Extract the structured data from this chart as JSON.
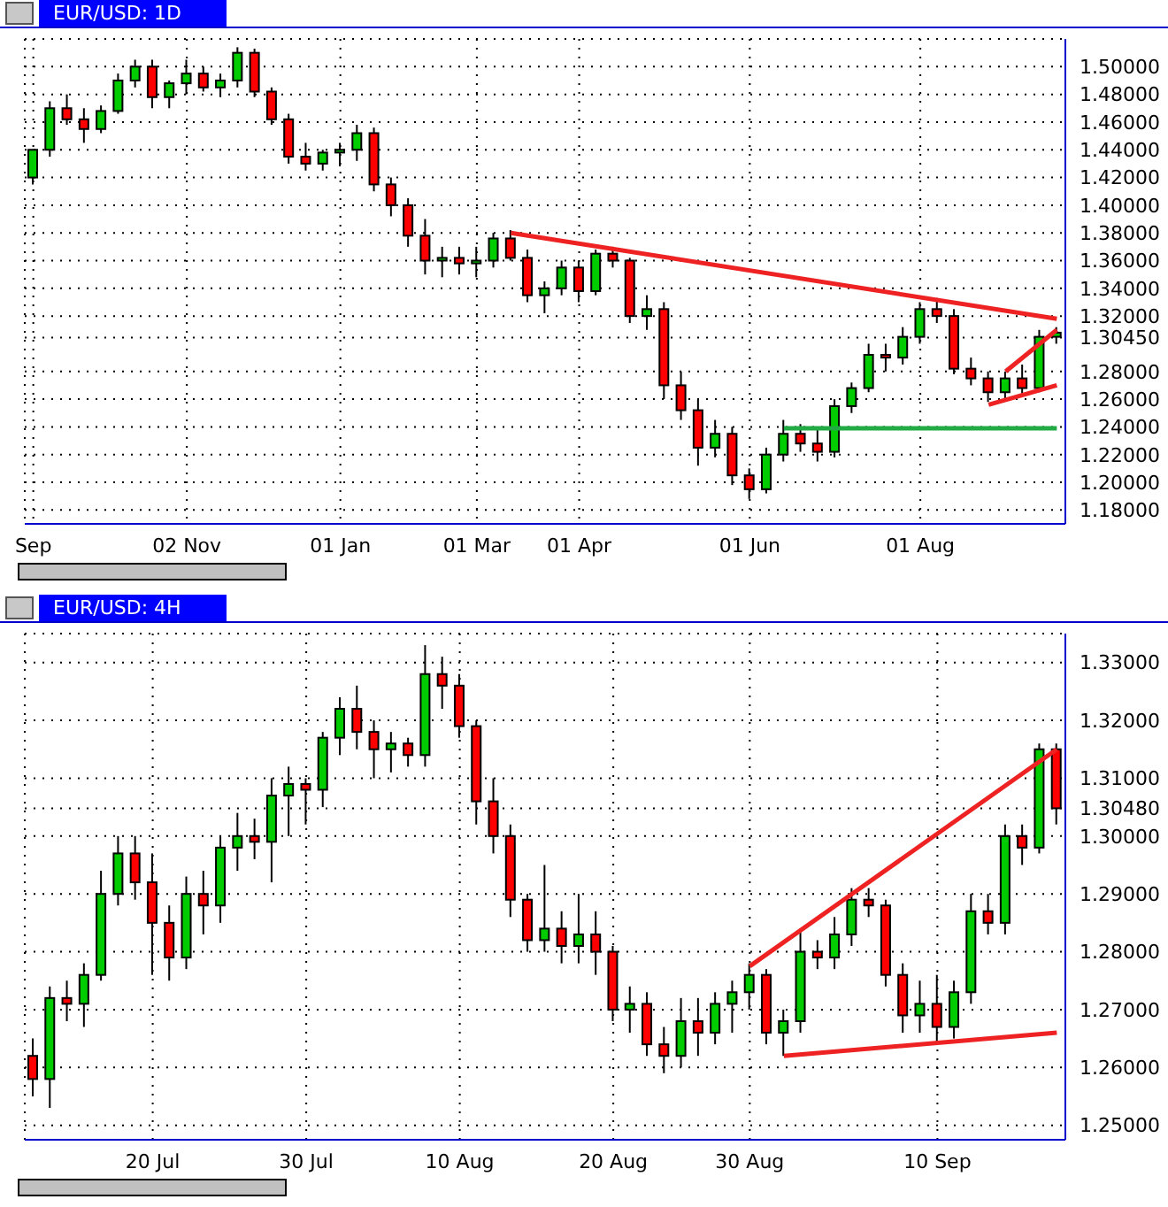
{
  "chart_data": [
    {
      "type": "candlestick",
      "title": "EUR/USD: 1D",
      "categories": [
        "Sep",
        null,
        null,
        null,
        null,
        null,
        null,
        null,
        null,
        "02 Nov",
        null,
        null,
        null,
        null,
        null,
        null,
        null,
        null,
        "01 Jan",
        null,
        null,
        null,
        null,
        null,
        null,
        null,
        "01 Mar",
        null,
        null,
        null,
        null,
        null,
        "01 Apr",
        null,
        null,
        null,
        null,
        null,
        null,
        null,
        null,
        null,
        "01 Jun",
        null,
        null,
        null,
        null,
        null,
        null,
        null,
        null,
        null,
        "01 Aug",
        null,
        null,
        null,
        null,
        null,
        null,
        null,
        null
      ],
      "ohlc": [
        [
          1.42,
          1.44,
          1.415,
          1.44
        ],
        [
          1.44,
          1.475,
          1.435,
          1.47
        ],
        [
          1.47,
          1.48,
          1.458,
          1.462
        ],
        [
          1.462,
          1.47,
          1.445,
          1.455
        ],
        [
          1.455,
          1.472,
          1.452,
          1.468
        ],
        [
          1.468,
          1.495,
          1.466,
          1.49
        ],
        [
          1.49,
          1.505,
          1.485,
          1.5
        ],
        [
          1.5,
          1.505,
          1.47,
          1.478
        ],
        [
          1.478,
          1.49,
          1.47,
          1.488
        ],
        [
          1.488,
          1.505,
          1.48,
          1.495
        ],
        [
          1.495,
          1.5,
          1.482,
          1.485
        ],
        [
          1.485,
          1.495,
          1.478,
          1.49
        ],
        [
          1.49,
          1.514,
          1.485,
          1.51
        ],
        [
          1.51,
          1.513,
          1.478,
          1.482
        ],
        [
          1.482,
          1.485,
          1.458,
          1.462
        ],
        [
          1.462,
          1.466,
          1.43,
          1.435
        ],
        [
          1.435,
          1.445,
          1.425,
          1.43
        ],
        [
          1.43,
          1.44,
          1.425,
          1.438
        ],
        [
          1.438,
          1.445,
          1.428,
          1.44
        ],
        [
          1.44,
          1.458,
          1.432,
          1.452
        ],
        [
          1.452,
          1.456,
          1.41,
          1.415
        ],
        [
          1.415,
          1.42,
          1.392,
          1.4
        ],
        [
          1.4,
          1.405,
          1.37,
          1.378
        ],
        [
          1.378,
          1.39,
          1.35,
          1.36
        ],
        [
          1.36,
          1.37,
          1.348,
          1.362
        ],
        [
          1.362,
          1.37,
          1.35,
          1.358
        ],
        [
          1.358,
          1.37,
          1.348,
          1.36
        ],
        [
          1.36,
          1.38,
          1.355,
          1.376
        ],
        [
          1.376,
          1.382,
          1.36,
          1.362
        ],
        [
          1.362,
          1.368,
          1.33,
          1.335
        ],
        [
          1.335,
          1.345,
          1.322,
          1.34
        ],
        [
          1.34,
          1.36,
          1.335,
          1.355
        ],
        [
          1.355,
          1.36,
          1.33,
          1.338
        ],
        [
          1.338,
          1.368,
          1.335,
          1.365
        ],
        [
          1.365,
          1.37,
          1.355,
          1.36
        ],
        [
          1.36,
          1.362,
          1.315,
          1.32
        ],
        [
          1.32,
          1.335,
          1.31,
          1.325
        ],
        [
          1.325,
          1.33,
          1.26,
          1.27
        ],
        [
          1.27,
          1.28,
          1.245,
          1.252
        ],
        [
          1.252,
          1.26,
          1.212,
          1.225
        ],
        [
          1.225,
          1.245,
          1.218,
          1.235
        ],
        [
          1.235,
          1.24,
          1.198,
          1.205
        ],
        [
          1.205,
          1.21,
          1.188,
          1.195
        ],
        [
          1.195,
          1.225,
          1.192,
          1.22
        ],
        [
          1.22,
          1.245,
          1.215,
          1.235
        ],
        [
          1.235,
          1.242,
          1.222,
          1.228
        ],
        [
          1.228,
          1.24,
          1.215,
          1.222
        ],
        [
          1.222,
          1.26,
          1.218,
          1.255
        ],
        [
          1.255,
          1.272,
          1.25,
          1.268
        ],
        [
          1.268,
          1.3,
          1.265,
          1.292
        ],
        [
          1.292,
          1.3,
          1.28,
          1.29
        ],
        [
          1.29,
          1.312,
          1.285,
          1.305
        ],
        [
          1.305,
          1.33,
          1.3,
          1.325
        ],
        [
          1.325,
          1.333,
          1.315,
          1.32
        ],
        [
          1.32,
          1.325,
          1.278,
          1.282
        ],
        [
          1.282,
          1.29,
          1.27,
          1.275
        ],
        [
          1.275,
          1.28,
          1.258,
          1.265
        ],
        [
          1.265,
          1.28,
          1.26,
          1.275
        ],
        [
          1.275,
          1.285,
          1.262,
          1.268
        ],
        [
          1.268,
          1.31,
          1.265,
          1.305
        ],
        [
          1.305,
          1.312,
          1.3,
          1.308
        ]
      ],
      "series": [
        {
          "type": "line",
          "color": "#ee2222",
          "values": [
            null,
            null,
            null,
            null,
            null,
            null,
            null,
            null,
            null,
            null,
            null,
            null,
            null,
            null,
            null,
            null,
            null,
            null,
            null,
            null,
            null,
            null,
            null,
            null,
            null,
            null,
            null,
            null,
            1.38,
            null,
            null,
            null,
            null,
            null,
            null,
            null,
            null,
            null,
            null,
            null,
            null,
            null,
            null,
            null,
            null,
            null,
            null,
            null,
            null,
            null,
            null,
            null,
            null,
            null,
            null,
            null,
            null,
            null,
            null,
            null,
            1.318
          ]
        },
        {
          "type": "line",
          "color": "#ee2222",
          "values": [
            null,
            null,
            null,
            null,
            null,
            null,
            null,
            null,
            null,
            null,
            null,
            null,
            null,
            null,
            null,
            null,
            null,
            null,
            null,
            null,
            null,
            null,
            null,
            null,
            null,
            null,
            null,
            null,
            null,
            null,
            null,
            null,
            null,
            null,
            null,
            null,
            null,
            null,
            null,
            null,
            null,
            null,
            null,
            null,
            null,
            null,
            null,
            null,
            null,
            null,
            null,
            null,
            null,
            null,
            null,
            null,
            null,
            1.28,
            null,
            null,
            1.31
          ]
        },
        {
          "type": "line",
          "color": "#ee2222",
          "values": [
            null,
            null,
            null,
            null,
            null,
            null,
            null,
            null,
            null,
            null,
            null,
            null,
            null,
            null,
            null,
            null,
            null,
            null,
            null,
            null,
            null,
            null,
            null,
            null,
            null,
            null,
            null,
            null,
            null,
            null,
            null,
            null,
            null,
            null,
            null,
            null,
            null,
            null,
            null,
            null,
            null,
            null,
            null,
            null,
            null,
            null,
            null,
            null,
            null,
            null,
            null,
            null,
            null,
            null,
            null,
            null,
            1.256,
            null,
            null,
            null,
            1.27
          ]
        },
        {
          "type": "line",
          "color": "#22aa44",
          "values": [
            null,
            null,
            null,
            null,
            null,
            null,
            null,
            null,
            null,
            null,
            null,
            null,
            null,
            null,
            null,
            null,
            null,
            null,
            null,
            null,
            null,
            null,
            null,
            null,
            null,
            null,
            null,
            null,
            null,
            null,
            null,
            null,
            null,
            null,
            null,
            null,
            null,
            null,
            null,
            null,
            null,
            null,
            null,
            null,
            1.239,
            null,
            null,
            null,
            null,
            null,
            null,
            null,
            null,
            null,
            null,
            null,
            null,
            null,
            null,
            null,
            1.239
          ]
        }
      ],
      "ylim": [
        1.17,
        1.52
      ],
      "yticks": [
        {
          "value": 1.18,
          "label": "1.18000"
        },
        {
          "value": 1.2,
          "label": "1.20000"
        },
        {
          "value": 1.22,
          "label": "1.22000"
        },
        {
          "value": 1.24,
          "label": "1.24000"
        },
        {
          "value": 1.26,
          "label": "1.26000"
        },
        {
          "value": 1.28,
          "label": "1.28000"
        },
        {
          "value": 1.3045,
          "label": "1.30450"
        },
        {
          "value": 1.32,
          "label": "1.32000"
        },
        {
          "value": 1.34,
          "label": "1.34000"
        },
        {
          "value": 1.36,
          "label": "1.36000"
        },
        {
          "value": 1.38,
          "label": "1.38000"
        },
        {
          "value": 1.4,
          "label": "1.40000"
        },
        {
          "value": 1.42,
          "label": "1.42000"
        },
        {
          "value": 1.44,
          "label": "1.44000"
        },
        {
          "value": 1.46,
          "label": "1.46000"
        },
        {
          "value": 1.48,
          "label": "1.48000"
        },
        {
          "value": 1.5,
          "label": "1.50000"
        }
      ],
      "grid": true
    },
    {
      "type": "candlestick",
      "title": "EUR/USD: 4H",
      "categories": [
        null,
        null,
        null,
        null,
        null,
        null,
        null,
        "20 Jul",
        null,
        null,
        null,
        null,
        null,
        null,
        null,
        null,
        "30 Jul",
        null,
        null,
        null,
        null,
        null,
        null,
        null,
        null,
        "10 Aug",
        null,
        null,
        null,
        null,
        null,
        null,
        null,
        null,
        "20 Aug",
        null,
        null,
        null,
        null,
        null,
        null,
        null,
        "30 Aug",
        null,
        null,
        null,
        null,
        null,
        null,
        null,
        null,
        null,
        null,
        "10 Sep",
        null,
        null,
        null,
        null,
        null,
        null,
        null
      ],
      "ohlc": [
        [
          1.262,
          1.265,
          1.255,
          1.258
        ],
        [
          1.258,
          1.274,
          1.253,
          1.272
        ],
        [
          1.272,
          1.275,
          1.268,
          1.271
        ],
        [
          1.271,
          1.278,
          1.267,
          1.276
        ],
        [
          1.276,
          1.294,
          1.275,
          1.29
        ],
        [
          1.29,
          1.3,
          1.288,
          1.297
        ],
        [
          1.297,
          1.3,
          1.289,
          1.292
        ],
        [
          1.292,
          1.297,
          1.276,
          1.285
        ],
        [
          1.285,
          1.288,
          1.275,
          1.279
        ],
        [
          1.279,
          1.293,
          1.277,
          1.29
        ],
        [
          1.29,
          1.294,
          1.283,
          1.288
        ],
        [
          1.288,
          1.3,
          1.285,
          1.298
        ],
        [
          1.298,
          1.304,
          1.294,
          1.3
        ],
        [
          1.3,
          1.303,
          1.296,
          1.299
        ],
        [
          1.299,
          1.31,
          1.292,
          1.307
        ],
        [
          1.307,
          1.312,
          1.3,
          1.309
        ],
        [
          1.309,
          1.31,
          1.302,
          1.308
        ],
        [
          1.308,
          1.318,
          1.305,
          1.317
        ],
        [
          1.317,
          1.324,
          1.314,
          1.322
        ],
        [
          1.322,
          1.326,
          1.315,
          1.318
        ],
        [
          1.318,
          1.32,
          1.31,
          1.315
        ],
        [
          1.315,
          1.318,
          1.311,
          1.316
        ],
        [
          1.316,
          1.317,
          1.312,
          1.314
        ],
        [
          1.314,
          1.333,
          1.312,
          1.328
        ],
        [
          1.328,
          1.331,
          1.322,
          1.326
        ],
        [
          1.326,
          1.328,
          1.317,
          1.319
        ],
        [
          1.319,
          1.32,
          1.302,
          1.306
        ],
        [
          1.306,
          1.31,
          1.297,
          1.3
        ],
        [
          1.3,
          1.302,
          1.286,
          1.289
        ],
        [
          1.289,
          1.29,
          1.28,
          1.282
        ],
        [
          1.282,
          1.295,
          1.28,
          1.284
        ],
        [
          1.284,
          1.287,
          1.278,
          1.281
        ],
        [
          1.281,
          1.29,
          1.278,
          1.283
        ],
        [
          1.283,
          1.287,
          1.276,
          1.28
        ],
        [
          1.28,
          1.281,
          1.268,
          1.27
        ],
        [
          1.27,
          1.274,
          1.266,
          1.271
        ],
        [
          1.271,
          1.273,
          1.262,
          1.264
        ],
        [
          1.264,
          1.267,
          1.259,
          1.262
        ],
        [
          1.262,
          1.272,
          1.26,
          1.268
        ],
        [
          1.268,
          1.272,
          1.262,
          1.266
        ],
        [
          1.266,
          1.273,
          1.264,
          1.271
        ],
        [
          1.271,
          1.275,
          1.266,
          1.273
        ],
        [
          1.273,
          1.278,
          1.27,
          1.276
        ],
        [
          1.276,
          1.277,
          1.264,
          1.266
        ],
        [
          1.266,
          1.27,
          1.262,
          1.268
        ],
        [
          1.268,
          1.284,
          1.266,
          1.28
        ],
        [
          1.28,
          1.282,
          1.277,
          1.279
        ],
        [
          1.279,
          1.286,
          1.277,
          1.283
        ],
        [
          1.283,
          1.291,
          1.281,
          1.289
        ],
        [
          1.289,
          1.291,
          1.286,
          1.288
        ],
        [
          1.288,
          1.289,
          1.274,
          1.276
        ],
        [
          1.276,
          1.278,
          1.266,
          1.269
        ],
        [
          1.269,
          1.275,
          1.266,
          1.271
        ],
        [
          1.271,
          1.276,
          1.264,
          1.267
        ],
        [
          1.267,
          1.275,
          1.265,
          1.273
        ],
        [
          1.273,
          1.29,
          1.271,
          1.287
        ],
        [
          1.287,
          1.29,
          1.283,
          1.285
        ],
        [
          1.285,
          1.302,
          1.283,
          1.3
        ],
        [
          1.3,
          1.302,
          1.295,
          1.298
        ],
        [
          1.298,
          1.316,
          1.297,
          1.315
        ],
        [
          1.315,
          1.316,
          1.302,
          1.3048
        ]
      ],
      "series": [
        {
          "type": "line",
          "color": "#ee2222",
          "values": [
            null,
            null,
            null,
            null,
            null,
            null,
            null,
            null,
            null,
            null,
            null,
            null,
            null,
            null,
            null,
            null,
            null,
            null,
            null,
            null,
            null,
            null,
            null,
            null,
            null,
            null,
            null,
            null,
            null,
            null,
            null,
            null,
            null,
            null,
            null,
            null,
            null,
            null,
            null,
            null,
            null,
            null,
            1.2775,
            null,
            null,
            null,
            null,
            null,
            null,
            null,
            null,
            null,
            null,
            null,
            null,
            null,
            null,
            null,
            null,
            null,
            1.315
          ]
        },
        {
          "type": "line",
          "color": "#ee2222",
          "values": [
            null,
            null,
            null,
            null,
            null,
            null,
            null,
            null,
            null,
            null,
            null,
            null,
            null,
            null,
            null,
            null,
            null,
            null,
            null,
            null,
            null,
            null,
            null,
            null,
            null,
            null,
            null,
            null,
            null,
            null,
            null,
            null,
            null,
            null,
            null,
            null,
            null,
            null,
            null,
            null,
            null,
            null,
            null,
            null,
            1.262,
            null,
            null,
            null,
            null,
            null,
            null,
            null,
            null,
            null,
            null,
            null,
            null,
            null,
            null,
            null,
            1.266
          ]
        }
      ],
      "ylim": [
        1.2475,
        1.335
      ],
      "yticks": [
        {
          "value": 1.25,
          "label": "1.25000"
        },
        {
          "value": 1.26,
          "label": "1.26000"
        },
        {
          "value": 1.27,
          "label": "1.27000"
        },
        {
          "value": 1.28,
          "label": "1.28000"
        },
        {
          "value": 1.29,
          "label": "1.29000"
        },
        {
          "value": 1.3,
          "label": "1.30000"
        },
        {
          "value": 1.3048,
          "label": "1.30480"
        },
        {
          "value": 1.31,
          "label": "1.31000"
        },
        {
          "value": 1.32,
          "label": "1.32000"
        },
        {
          "value": 1.33,
          "label": "1.33000"
        }
      ],
      "grid": true
    }
  ]
}
